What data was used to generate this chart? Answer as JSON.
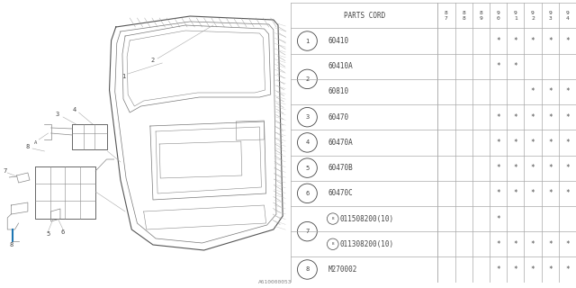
{
  "title_code": "A610000053",
  "table": {
    "header": [
      "PARTS CORD",
      "8\n7",
      "8\n8",
      "8\n9",
      "9\n0",
      "9\n1",
      "9\n2",
      "9\n3",
      "9\n4"
    ],
    "rows": [
      {
        "num": "1",
        "code": "60410",
        "marks": [
          0,
          0,
          0,
          1,
          1,
          1,
          1,
          1
        ]
      },
      {
        "num": "2",
        "code": "60410A",
        "marks": [
          0,
          0,
          0,
          1,
          1,
          0,
          0,
          0
        ]
      },
      {
        "num": "2",
        "code": "60810",
        "marks": [
          0,
          0,
          0,
          0,
          0,
          1,
          1,
          1
        ]
      },
      {
        "num": "3",
        "code": "60470",
        "marks": [
          0,
          0,
          0,
          1,
          1,
          1,
          1,
          1
        ]
      },
      {
        "num": "4",
        "code": "60470A",
        "marks": [
          0,
          0,
          0,
          1,
          1,
          1,
          1,
          1
        ]
      },
      {
        "num": "5",
        "code": "60470B",
        "marks": [
          0,
          0,
          0,
          1,
          1,
          1,
          1,
          1
        ]
      },
      {
        "num": "6",
        "code": "60470C",
        "marks": [
          0,
          0,
          0,
          1,
          1,
          1,
          1,
          1
        ]
      },
      {
        "num": "7",
        "code": "B011508200(10)",
        "marks": [
          0,
          0,
          0,
          1,
          0,
          0,
          0,
          0
        ]
      },
      {
        "num": "7",
        "code": "B011308200(10)",
        "marks": [
          0,
          0,
          0,
          1,
          1,
          1,
          1,
          1
        ]
      },
      {
        "num": "8",
        "code": "M270002",
        "marks": [
          0,
          0,
          0,
          1,
          1,
          1,
          1,
          1
        ]
      }
    ],
    "row_groups": [
      {
        "rows": [
          0
        ],
        "label": "1"
      },
      {
        "rows": [
          1,
          2
        ],
        "label": "2"
      },
      {
        "rows": [
          3
        ],
        "label": "3"
      },
      {
        "rows": [
          4
        ],
        "label": "4"
      },
      {
        "rows": [
          5
        ],
        "label": "5"
      },
      {
        "rows": [
          6
        ],
        "label": "6"
      },
      {
        "rows": [
          7,
          8
        ],
        "label": "7"
      },
      {
        "rows": [
          9
        ],
        "label": "8"
      }
    ]
  },
  "bg_color": "#ffffff",
  "line_color": "#aaaaaa",
  "text_color": "#444444",
  "draw_color": "#888888",
  "font_size": 5.5,
  "header_font_size": 5.5
}
